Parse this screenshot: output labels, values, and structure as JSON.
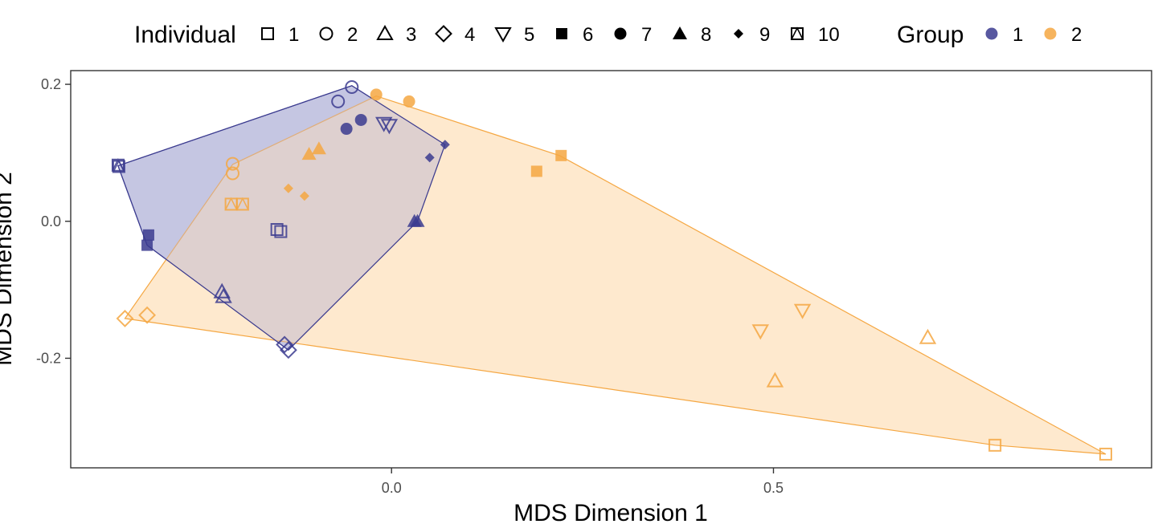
{
  "chart_data": {
    "type": "scatter",
    "xlabel": "MDS Dimension 1",
    "ylabel": "MDS Dimension 2",
    "xlim": [
      -0.42,
      0.995
    ],
    "ylim": [
      -0.36,
      0.22
    ],
    "x_ticks": [
      {
        "value": 0.0,
        "label": "0.0"
      },
      {
        "value": 0.5,
        "label": "0.5"
      }
    ],
    "y_ticks": [
      {
        "value": 0.2,
        "label": "0.2"
      },
      {
        "value": 0.0,
        "label": "0.0"
      },
      {
        "value": -0.2,
        "label": "-0.2"
      }
    ],
    "grid": false,
    "legend": {
      "position": "top",
      "individual_title": "Individual",
      "individual_items": [
        {
          "label": "1",
          "shape": "square-open"
        },
        {
          "label": "2",
          "shape": "circle-open"
        },
        {
          "label": "3",
          "shape": "triangle-open"
        },
        {
          "label": "4",
          "shape": "diamond-open"
        },
        {
          "label": "5",
          "shape": "triangle-down-open"
        },
        {
          "label": "6",
          "shape": "square-filled"
        },
        {
          "label": "7",
          "shape": "circle-filled"
        },
        {
          "label": "8",
          "shape": "triangle-filled"
        },
        {
          "label": "9",
          "shape": "diamond-filled-small"
        },
        {
          "label": "10",
          "shape": "square-triangle-open"
        }
      ],
      "group_title": "Group",
      "group_items": [
        {
          "label": "1",
          "color": "#3b3b8f"
        },
        {
          "label": "2",
          "color": "#f5a742"
        }
      ]
    },
    "colors": {
      "group1": "#3b3b8f",
      "group2": "#f5a742",
      "group1_fill": "#b9bbdc",
      "group2_fill": "#fde2bd"
    },
    "hulls": [
      {
        "group": "1",
        "points": [
          [
            -0.358,
            0.081
          ],
          [
            -0.052,
            0.198
          ],
          [
            0.07,
            0.112
          ],
          [
            0.034,
            0.0
          ],
          [
            -0.135,
            -0.188
          ],
          [
            -0.32,
            -0.035
          ]
        ]
      },
      {
        "group": "2",
        "points": [
          [
            -0.349,
            -0.142
          ],
          [
            -0.208,
            0.083
          ],
          [
            -0.02,
            0.183
          ],
          [
            0.22,
            0.096
          ],
          [
            0.935,
            -0.34
          ],
          [
            0.79,
            -0.327
          ]
        ]
      }
    ],
    "series": [
      {
        "name": "1",
        "points": [
          {
            "ind": "1",
            "x": -0.15,
            "y": -0.012
          },
          {
            "ind": "1",
            "x": -0.145,
            "y": -0.015
          },
          {
            "ind": "2",
            "x": -0.07,
            "y": 0.175
          },
          {
            "ind": "2",
            "x": -0.052,
            "y": 0.196
          },
          {
            "ind": "3",
            "x": -0.222,
            "y": -0.103
          },
          {
            "ind": "3",
            "x": -0.22,
            "y": -0.11
          },
          {
            "ind": "4",
            "x": -0.14,
            "y": -0.18
          },
          {
            "ind": "4",
            "x": -0.135,
            "y": -0.188
          },
          {
            "ind": "5",
            "x": -0.01,
            "y": 0.143
          },
          {
            "ind": "5",
            "x": -0.003,
            "y": 0.14
          },
          {
            "ind": "6",
            "x": -0.318,
            "y": -0.02
          },
          {
            "ind": "6",
            "x": -0.32,
            "y": -0.035
          },
          {
            "ind": "7",
            "x": -0.059,
            "y": 0.135
          },
          {
            "ind": "7",
            "x": -0.04,
            "y": 0.148
          },
          {
            "ind": "8",
            "x": 0.03,
            "y": 0.0
          },
          {
            "ind": "8",
            "x": 0.034,
            "y": 0.0
          },
          {
            "ind": "9",
            "x": 0.05,
            "y": 0.093
          },
          {
            "ind": "9",
            "x": 0.07,
            "y": 0.112
          },
          {
            "ind": "10",
            "x": -0.358,
            "y": 0.082
          },
          {
            "ind": "10",
            "x": -0.357,
            "y": 0.08
          }
        ]
      },
      {
        "name": "2",
        "points": [
          {
            "ind": "1",
            "x": 0.79,
            "y": -0.327
          },
          {
            "ind": "1",
            "x": 0.935,
            "y": -0.34
          },
          {
            "ind": "2",
            "x": -0.208,
            "y": 0.084
          },
          {
            "ind": "2",
            "x": -0.208,
            "y": 0.07
          },
          {
            "ind": "3",
            "x": 0.502,
            "y": -0.233
          },
          {
            "ind": "3",
            "x": 0.702,
            "y": -0.17
          },
          {
            "ind": "4",
            "x": -0.349,
            "y": -0.142
          },
          {
            "ind": "4",
            "x": -0.32,
            "y": -0.137
          },
          {
            "ind": "5",
            "x": 0.483,
            "y": -0.16
          },
          {
            "ind": "5",
            "x": 0.538,
            "y": -0.13
          },
          {
            "ind": "6",
            "x": 0.19,
            "y": 0.073
          },
          {
            "ind": "6",
            "x": 0.222,
            "y": 0.096
          },
          {
            "ind": "7",
            "x": -0.02,
            "y": 0.185
          },
          {
            "ind": "7",
            "x": 0.023,
            "y": 0.175
          },
          {
            "ind": "8",
            "x": -0.108,
            "y": 0.098
          },
          {
            "ind": "8",
            "x": -0.095,
            "y": 0.106
          },
          {
            "ind": "9",
            "x": -0.135,
            "y": 0.048
          },
          {
            "ind": "9",
            "x": -0.114,
            "y": 0.037
          },
          {
            "ind": "10",
            "x": -0.21,
            "y": 0.025
          },
          {
            "ind": "10",
            "x": -0.195,
            "y": 0.025
          }
        ]
      }
    ]
  }
}
